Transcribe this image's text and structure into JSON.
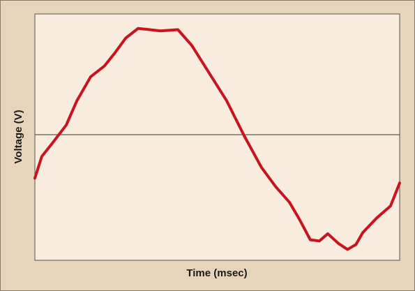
{
  "chart_data": {
    "type": "line",
    "x_label": "Time (msec)",
    "y_label": "Voltage (V)",
    "x": [
      0,
      1.9,
      4.8,
      8.6,
      11.5,
      15.3,
      19.1,
      22.0,
      24.9,
      28.3,
      31.5,
      34.4,
      39.2,
      43.0,
      47.8,
      52.6,
      57.4,
      62.1,
      66.0,
      69.8,
      72.7,
      75.5,
      78.0,
      80.3,
      83.2,
      85.7,
      88.0,
      89.9,
      93.7,
      97.5,
      100
    ],
    "series": [
      {
        "color": "#c8141e",
        "values": [
          -0.36,
          -0.18,
          -0.07,
          0.08,
          0.28,
          0.48,
          0.57,
          0.68,
          0.8,
          0.88,
          0.87,
          0.86,
          0.87,
          0.74,
          0.51,
          0.28,
          -0.01,
          -0.27,
          -0.43,
          -0.56,
          -0.71,
          -0.87,
          -0.88,
          -0.82,
          -0.9,
          -0.95,
          -0.91,
          -0.81,
          -0.69,
          -0.59,
          -0.4
        ]
      }
    ],
    "xlim": [
      0,
      100
    ],
    "ylim": [
      -1.04,
      1
    ]
  }
}
